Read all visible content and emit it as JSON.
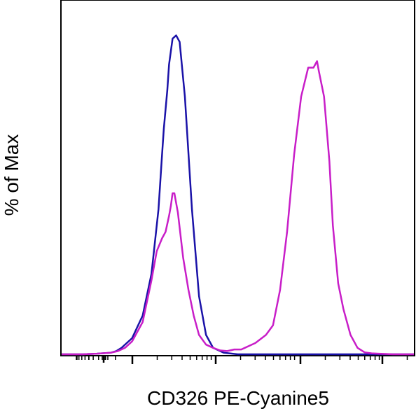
{
  "chart_data": {
    "type": "line",
    "xlabel": "CD326 PE-Cyanine5",
    "ylabel": "% of Max",
    "xscale": "biexponential",
    "xlim": [
      0,
      1
    ],
    "ylim": [
      0,
      100
    ],
    "grid": false,
    "legend": "none",
    "series": [
      {
        "color": "#1a12a8",
        "x": [
          0,
          0.06,
          0.1,
          0.14,
          0.155,
          0.17,
          0.2,
          0.23,
          0.255,
          0.275,
          0.285,
          0.29,
          0.3,
          0.305,
          0.315,
          0.325,
          0.335,
          0.35,
          0.37,
          0.39,
          0.41,
          0.43,
          0.46,
          0.5,
          0.6,
          0.7,
          0.8,
          0.9,
          1.0
        ],
        "y": [
          0,
          0,
          0.2,
          0.5,
          1,
          2,
          5,
          12,
          25,
          45,
          62,
          70,
          82,
          90,
          98,
          99,
          97,
          80,
          45,
          18,
          6,
          2,
          0.5,
          0,
          0,
          0,
          0,
          0,
          0
        ]
      },
      {
        "color": "#c81ec8",
        "x": [
          0,
          0.06,
          0.1,
          0.14,
          0.16,
          0.18,
          0.2,
          0.23,
          0.255,
          0.27,
          0.285,
          0.295,
          0.305,
          0.31,
          0.315,
          0.32,
          0.33,
          0.345,
          0.36,
          0.375,
          0.39,
          0.41,
          0.43,
          0.45,
          0.47,
          0.49,
          0.51,
          0.52,
          0.53,
          0.55,
          0.58,
          0.6,
          0.62,
          0.64,
          0.66,
          0.68,
          0.7,
          0.715,
          0.725,
          0.73,
          0.745,
          0.76,
          0.77,
          0.785,
          0.8,
          0.82,
          0.84,
          0.86,
          0.88,
          0.9,
          0.92,
          0.94,
          0.96,
          0.98,
          1.0
        ],
        "y": [
          0,
          0,
          0.2,
          0.5,
          1,
          2,
          4,
          10,
          23,
          32,
          36,
          38,
          43,
          46,
          50,
          50,
          44,
          30,
          20,
          12,
          6,
          3,
          2,
          1.2,
          1,
          1.5,
          1.5,
          2,
          2.5,
          3.5,
          6,
          9,
          20,
          38,
          62,
          80,
          89,
          89,
          91,
          88,
          80,
          60,
          40,
          22,
          14,
          6,
          2,
          0.6,
          0.3,
          0.2,
          0.1,
          0,
          0,
          0,
          0
        ]
      }
    ]
  }
}
